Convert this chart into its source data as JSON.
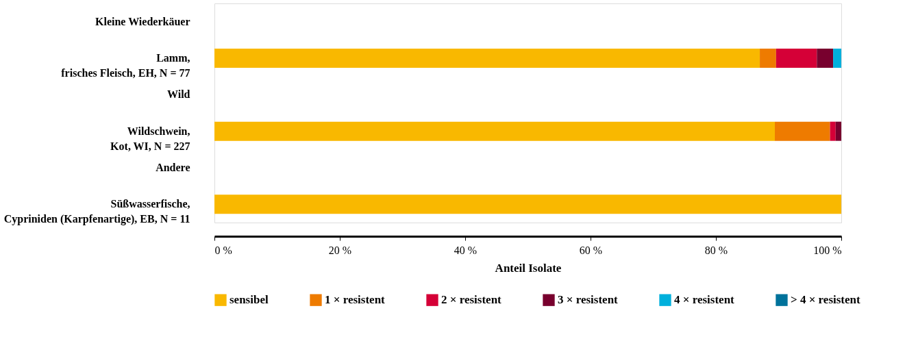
{
  "chart_data": {
    "type": "bar",
    "orientation": "horizontal",
    "stacked": true,
    "categories": [
      "Kleine Wiederkäuer",
      "Lamm,\nfrisches Fleisch, EH, N = 77",
      "Wild",
      "Wildschwein,\nKot, WI, N = 227",
      "Andere",
      "Süßwasserfische,\nCypriniden (Karpfenartige), EB, N = 11"
    ],
    "series": [
      {
        "name": "sensibel",
        "color": "#f9b800",
        "values": [
          null,
          87.0,
          null,
          89.4,
          null,
          100
        ]
      },
      {
        "name": "1 × resistent",
        "color": "#ee7b00",
        "values": [
          null,
          2.6,
          null,
          8.8,
          null,
          null
        ]
      },
      {
        "name": "2 × resistent",
        "color": "#d50037",
        "values": [
          null,
          6.5,
          null,
          0.9,
          null,
          null
        ]
      },
      {
        "name": "3 × resistent",
        "color": "#78002e",
        "values": [
          null,
          2.6,
          null,
          0.9,
          null,
          null
        ]
      },
      {
        "name": "4 × resistent",
        "color": "#00b0dc",
        "values": [
          null,
          1.3,
          null,
          null,
          null,
          null
        ]
      },
      {
        "name": "> 4 × resistent",
        "color": "#00729b",
        "values": [
          null,
          null,
          null,
          null,
          null,
          null
        ]
      }
    ],
    "xlim": [
      0,
      100
    ],
    "xticks": [
      {
        "value": 0,
        "label": "0 %"
      },
      {
        "value": 20,
        "label": "20 %"
      },
      {
        "value": 40,
        "label": "40 %"
      },
      {
        "value": 60,
        "label": "60 %"
      },
      {
        "value": 80,
        "label": "80 %"
      },
      {
        "value": 100,
        "label": "100 %"
      }
    ],
    "xlabel": "Anteil Isolate",
    "grid": false,
    "legend": "bottom"
  }
}
